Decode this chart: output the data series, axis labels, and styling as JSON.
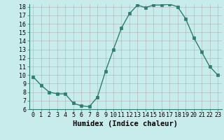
{
  "x": [
    0,
    1,
    2,
    3,
    4,
    5,
    6,
    7,
    8,
    9,
    10,
    11,
    12,
    13,
    14,
    15,
    16,
    17,
    18,
    19,
    20,
    21,
    22,
    23
  ],
  "y": [
    9.8,
    8.8,
    8.0,
    7.8,
    7.8,
    6.7,
    6.4,
    6.3,
    7.4,
    10.4,
    13.0,
    15.5,
    17.2,
    18.2,
    17.9,
    18.2,
    18.2,
    18.3,
    18.0,
    16.6,
    14.4,
    12.7,
    11.0,
    10.0
  ],
  "line_color": "#2e7d6e",
  "marker": "s",
  "marker_size": 2.5,
  "bg_color": "#c8ecec",
  "grid_color": "#aaaaaa",
  "xlabel": "Humidex (Indice chaleur)",
  "ylim": [
    6,
    18
  ],
  "xlim": [
    -0.5,
    23.5
  ],
  "yticks": [
    6,
    7,
    8,
    9,
    10,
    11,
    12,
    13,
    14,
    15,
    16,
    17,
    18
  ],
  "xticks": [
    0,
    1,
    2,
    3,
    4,
    5,
    6,
    7,
    8,
    9,
    10,
    11,
    12,
    13,
    14,
    15,
    16,
    17,
    18,
    19,
    20,
    21,
    22,
    23
  ],
  "tick_label_fontsize": 6,
  "xlabel_fontsize": 7.5,
  "line_width": 1.0
}
